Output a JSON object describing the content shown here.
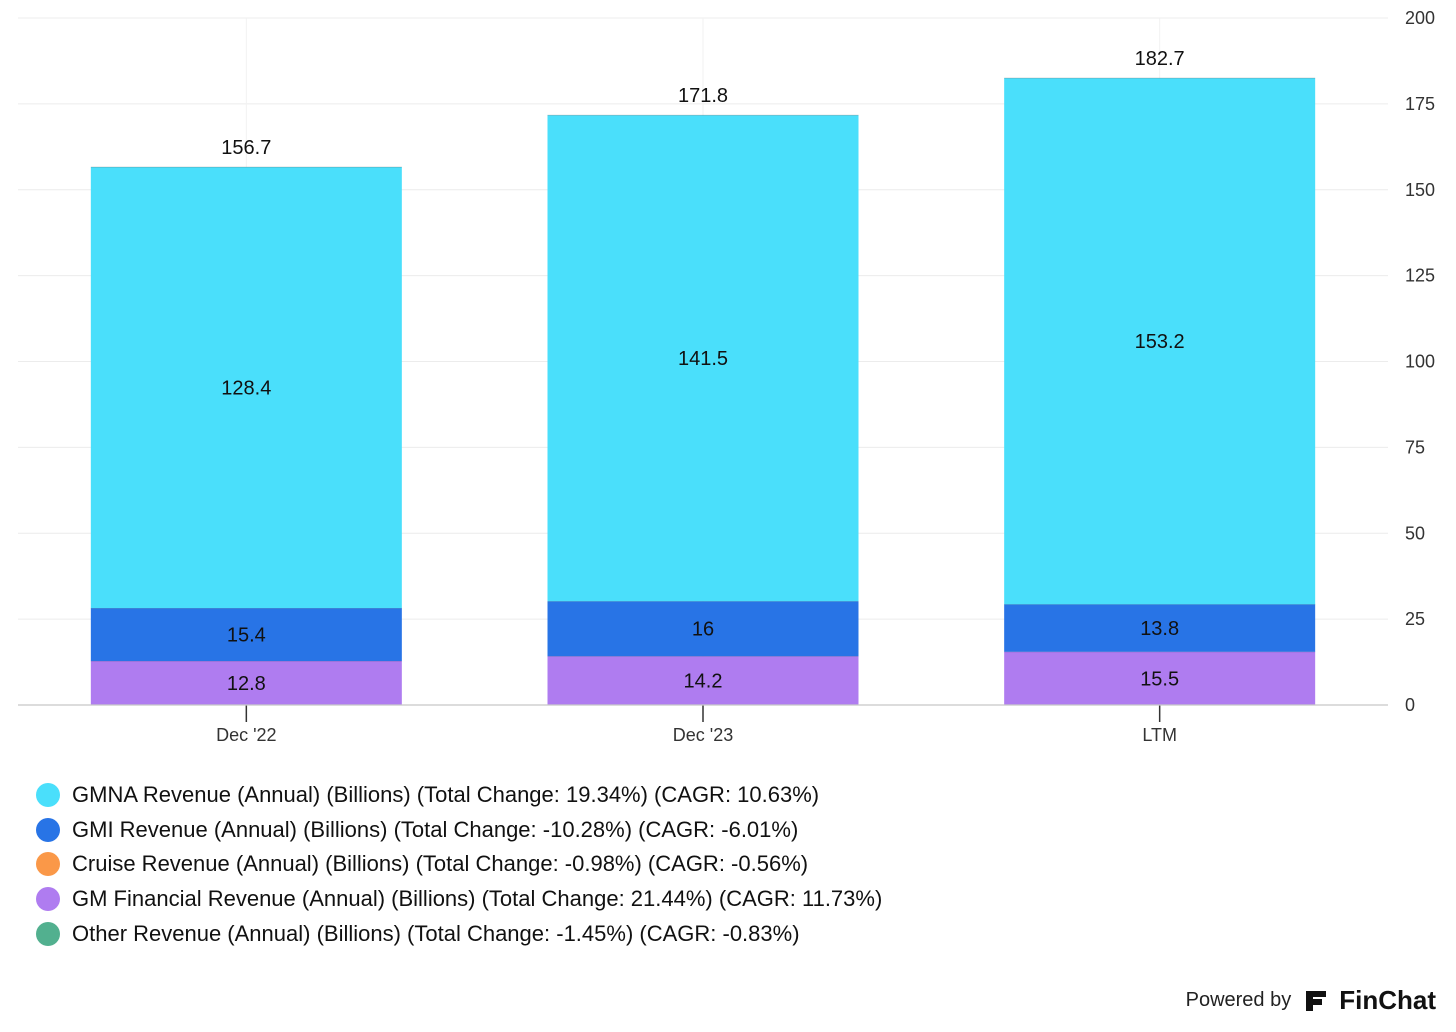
{
  "chart_data": {
    "type": "bar",
    "stacked": true,
    "categories": [
      "Dec '22",
      "Dec '23",
      "LTM"
    ],
    "series": [
      {
        "name": "GM Financial Revenue (Annual) (Billions)",
        "values": [
          12.8,
          14.2,
          15.5
        ],
        "color": "#af7cf0"
      },
      {
        "name": "GMI Revenue (Annual) (Billions)",
        "values": [
          15.4,
          16,
          13.8
        ],
        "color": "#2874e6"
      },
      {
        "name": "GMNA Revenue (Annual) (Billions)",
        "values": [
          128.4,
          141.5,
          153.2
        ],
        "color": "#4adffb"
      }
    ],
    "totals": [
      "156.7",
      "171.8",
      "182.7"
    ],
    "segment_labels": [
      [
        "12.8",
        "15.4",
        "128.4"
      ],
      [
        "14.2",
        "16",
        "141.5"
      ],
      [
        "15.5",
        "13.8",
        "153.2"
      ]
    ],
    "ylim": [
      0,
      200
    ],
    "yticks": [
      0,
      25,
      50,
      75,
      100,
      125,
      150,
      175,
      200
    ],
    "y_axis_side": "right",
    "grid": true,
    "title": "",
    "xlabel": "",
    "ylabel": ""
  },
  "legend": [
    {
      "label": "GMNA Revenue (Annual) (Billions) (Total Change: 19.34%) (CAGR: 10.63%)",
      "color": "#4adffb"
    },
    {
      "label": "GMI Revenue (Annual) (Billions) (Total Change: -10.28%) (CAGR: -6.01%)",
      "color": "#2874e6"
    },
    {
      "label": "Cruise Revenue (Annual) (Billions) (Total Change: -0.98%) (CAGR: -0.56%)",
      "color": "#fa9848"
    },
    {
      "label": "GM Financial Revenue (Annual) (Billions) (Total Change: 21.44%) (CAGR: 11.73%)",
      "color": "#af7cf0"
    },
    {
      "label": "Other Revenue (Annual) (Billions) (Total Change: -1.45%) (CAGR: -0.83%)",
      "color": "#52b08f"
    }
  ],
  "branding": {
    "powered_by": "Powered by",
    "name": "FinChat"
  }
}
